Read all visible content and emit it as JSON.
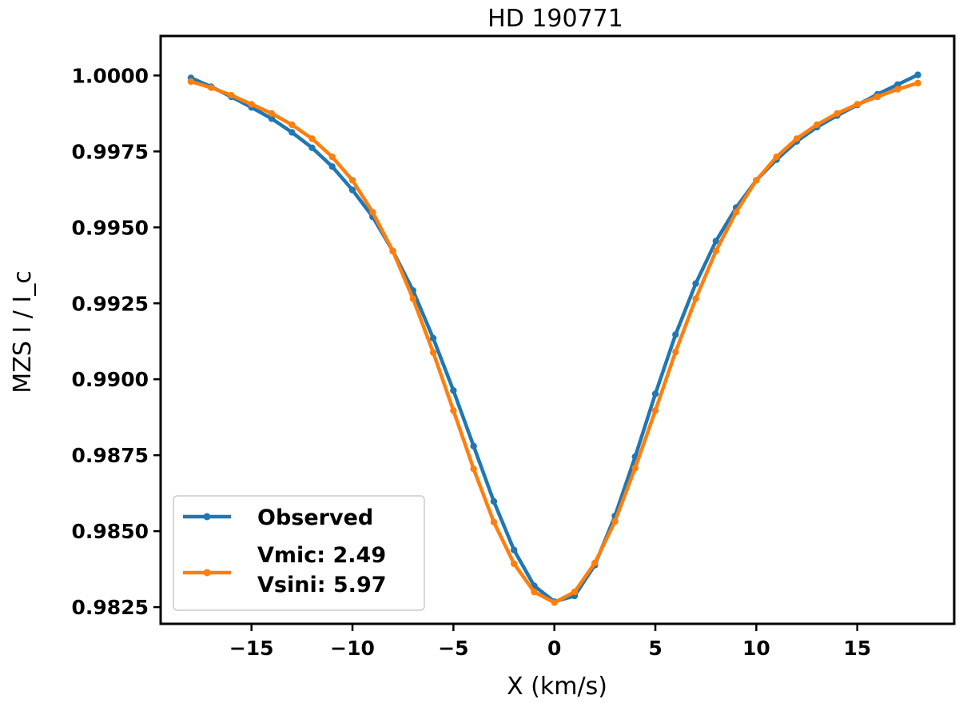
{
  "chart_data": {
    "type": "line",
    "title": "HD 190771",
    "xlabel": "X  (km/s)",
    "ylabel": "MZS  I / I_c",
    "xlim": [
      -19.5,
      19.8
    ],
    "ylim": [
      0.98195,
      1.0013
    ],
    "xticks": [
      -15,
      -10,
      -5,
      0,
      5,
      10,
      15
    ],
    "xtick_labels": [
      "−15",
      "−10",
      "−5",
      "0",
      "5",
      "10",
      "15"
    ],
    "yticks": [
      0.9825,
      0.985,
      0.9875,
      0.99,
      0.9925,
      0.995,
      0.9975,
      1.0
    ],
    "ytick_labels": [
      "0.9825",
      "0.9850",
      "0.9875",
      "0.9900",
      "0.9925",
      "0.9950",
      "0.9975",
      "1.0000"
    ],
    "grid": false,
    "legend": {
      "position": "lower-left"
    },
    "x": [
      -18,
      -17,
      -16,
      -15,
      -14,
      -13,
      -12,
      -11,
      -10,
      -9,
      -8,
      -7,
      -6,
      -5,
      -4,
      -3,
      -2,
      -1,
      0,
      1,
      2,
      3,
      4,
      5,
      6,
      7,
      8,
      9,
      10,
      11,
      12,
      13,
      14,
      15,
      16,
      17,
      18
    ],
    "series": [
      {
        "name": "Observed",
        "color": "#1f77b4",
        "values": [
          0.99992,
          0.99963,
          0.9993,
          0.99895,
          0.99858,
          0.99813,
          0.99762,
          0.997,
          0.99623,
          0.99535,
          0.99422,
          0.99292,
          0.99135,
          0.98963,
          0.9878,
          0.98598,
          0.98438,
          0.9832,
          0.98268,
          0.98287,
          0.98388,
          0.9855,
          0.98745,
          0.98952,
          0.99147,
          0.99315,
          0.99455,
          0.99565,
          0.99655,
          0.99723,
          0.99783,
          0.9983,
          0.99868,
          0.99903,
          0.99938,
          0.9997,
          1.00002
        ]
      },
      {
        "name": "Vmic: 2.49\nVsini: 5.97",
        "label_lines": [
          "Vmic: 2.49",
          "Vsini: 5.97"
        ],
        "color": "#ff7f0e",
        "values": [
          0.9998,
          0.9996,
          0.99935,
          0.99905,
          0.99875,
          0.99838,
          0.99792,
          0.99732,
          0.99655,
          0.9955,
          0.99422,
          0.99265,
          0.99088,
          0.98897,
          0.98705,
          0.9853,
          0.98393,
          0.983,
          0.98265,
          0.983,
          0.98395,
          0.98532,
          0.98708,
          0.98897,
          0.9909,
          0.99265,
          0.99422,
          0.9955,
          0.99655,
          0.99732,
          0.99792,
          0.99838,
          0.99875,
          0.99905,
          0.9993,
          0.99955,
          0.99975
        ]
      }
    ]
  }
}
